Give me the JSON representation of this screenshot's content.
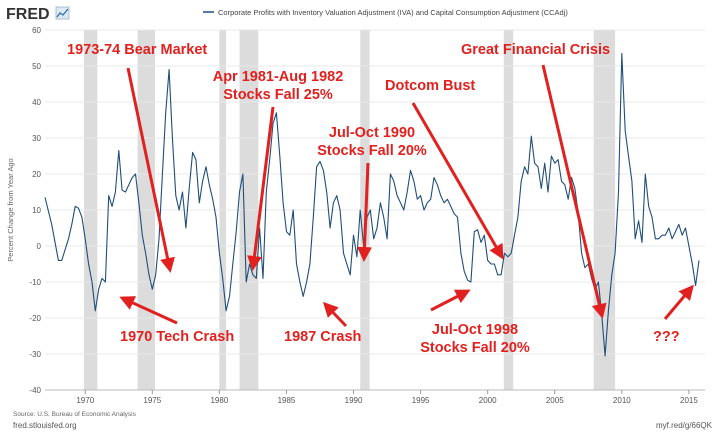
{
  "brand": {
    "name": "FRED"
  },
  "colors": {
    "series": "#1f4e79",
    "recession": "#dcdcdc",
    "annotation": "#e0211f",
    "grid": "#e8e8e8"
  },
  "footer": {
    "source": "Source: U.S. Bureau of Economic Analysis",
    "site": "fred.stlouisfed.org",
    "url": "myf.red/g/66QK"
  },
  "chart_data": {
    "type": "line",
    "title": "",
    "xlabel": "",
    "ylabel": "Percent Change from Year Ago",
    "xlim": [
      1967.0,
      2016.2
    ],
    "ylim": [
      -40,
      60
    ],
    "yticks": [
      -40,
      -30,
      -20,
      -10,
      0,
      10,
      20,
      30,
      40,
      50,
      60
    ],
    "xticks": [
      1970,
      1975,
      1980,
      1985,
      1990,
      1995,
      2000,
      2005,
      2010,
      2015
    ],
    "grid": true,
    "legend": "top",
    "recessions": [
      [
        1969.9,
        1970.9
      ],
      [
        1973.9,
        1975.2
      ],
      [
        1980.0,
        1980.5
      ],
      [
        1981.5,
        1982.9
      ],
      [
        1990.5,
        1991.2
      ],
      [
        2001.2,
        2001.9
      ],
      [
        2007.9,
        2009.5
      ]
    ],
    "series": [
      {
        "name": "Corporate Profits with Inventory Valuation Adjustment (IVA) and Capital Consumption Adjustment (CCAdj)",
        "points": [
          [
            1967.0,
            13.5
          ],
          [
            1967.5,
            6
          ],
          [
            1968.0,
            -4
          ],
          [
            1968.25,
            -4
          ],
          [
            1968.5,
            -1
          ],
          [
            1968.75,
            2
          ],
          [
            1969.0,
            6
          ],
          [
            1969.25,
            11
          ],
          [
            1969.5,
            10.5
          ],
          [
            1969.75,
            8
          ],
          [
            1970.0,
            2
          ],
          [
            1970.25,
            -5
          ],
          [
            1970.5,
            -10
          ],
          [
            1970.75,
            -18
          ],
          [
            1971.0,
            -12
          ],
          [
            1971.25,
            -9
          ],
          [
            1971.5,
            -10
          ],
          [
            1971.75,
            14
          ],
          [
            1972.0,
            11
          ],
          [
            1972.25,
            15
          ],
          [
            1972.5,
            26.5
          ],
          [
            1972.75,
            15.5
          ],
          [
            1973.0,
            15
          ],
          [
            1973.25,
            17
          ],
          [
            1973.5,
            19
          ],
          [
            1973.75,
            20
          ],
          [
            1974.0,
            12
          ],
          [
            1974.25,
            3
          ],
          [
            1974.5,
            -2
          ],
          [
            1974.75,
            -8
          ],
          [
            1975.0,
            -12
          ],
          [
            1975.25,
            -8
          ],
          [
            1975.5,
            2
          ],
          [
            1975.75,
            20
          ],
          [
            1976.0,
            37
          ],
          [
            1976.25,
            49
          ],
          [
            1976.5,
            30
          ],
          [
            1976.75,
            14
          ],
          [
            1977.0,
            10
          ],
          [
            1977.25,
            15
          ],
          [
            1977.5,
            5
          ],
          [
            1977.75,
            16
          ],
          [
            1978.0,
            26
          ],
          [
            1978.25,
            24
          ],
          [
            1978.5,
            12
          ],
          [
            1978.75,
            18
          ],
          [
            1979.0,
            22
          ],
          [
            1979.25,
            17
          ],
          [
            1979.5,
            13
          ],
          [
            1979.75,
            8
          ],
          [
            1980.0,
            -2
          ],
          [
            1980.25,
            -9
          ],
          [
            1980.5,
            -18
          ],
          [
            1980.75,
            -14
          ],
          [
            1981.0,
            -5
          ],
          [
            1981.25,
            4
          ],
          [
            1981.5,
            15
          ],
          [
            1981.75,
            20
          ],
          [
            1982.0,
            -10
          ],
          [
            1982.25,
            -5
          ],
          [
            1982.5,
            -8
          ],
          [
            1982.75,
            -9
          ],
          [
            1983.0,
            5
          ],
          [
            1983.25,
            -9
          ],
          [
            1983.5,
            15
          ],
          [
            1983.75,
            24
          ],
          [
            1984.0,
            34
          ],
          [
            1984.25,
            37
          ],
          [
            1984.5,
            25
          ],
          [
            1984.75,
            12
          ],
          [
            1985.0,
            4
          ],
          [
            1985.25,
            3
          ],
          [
            1985.5,
            10
          ],
          [
            1985.75,
            -5
          ],
          [
            1986.0,
            -10
          ],
          [
            1986.25,
            -14
          ],
          [
            1986.5,
            -10
          ],
          [
            1986.75,
            -5
          ],
          [
            1987.0,
            8
          ],
          [
            1987.25,
            22
          ],
          [
            1987.5,
            23.5
          ],
          [
            1987.75,
            21
          ],
          [
            1988.0,
            15
          ],
          [
            1988.25,
            5
          ],
          [
            1988.5,
            12
          ],
          [
            1988.75,
            14
          ],
          [
            1989.0,
            10
          ],
          [
            1989.25,
            -2
          ],
          [
            1989.5,
            -5
          ],
          [
            1989.75,
            -8
          ],
          [
            1990.0,
            3
          ],
          [
            1990.25,
            -3
          ],
          [
            1990.5,
            10
          ],
          [
            1990.75,
            0
          ],
          [
            1991.0,
            8
          ],
          [
            1991.25,
            10
          ],
          [
            1991.5,
            2
          ],
          [
            1991.75,
            5
          ],
          [
            1992.0,
            12
          ],
          [
            1992.25,
            8
          ],
          [
            1992.5,
            2
          ],
          [
            1992.75,
            20
          ],
          [
            1993.0,
            18
          ],
          [
            1993.25,
            14
          ],
          [
            1993.5,
            12
          ],
          [
            1993.75,
            10
          ],
          [
            1994.0,
            15
          ],
          [
            1994.25,
            21
          ],
          [
            1994.5,
            18
          ],
          [
            1994.75,
            13
          ],
          [
            1995.0,
            14
          ],
          [
            1995.25,
            10
          ],
          [
            1995.5,
            12
          ],
          [
            1995.75,
            13
          ],
          [
            1996.0,
            19
          ],
          [
            1996.25,
            17
          ],
          [
            1996.5,
            14
          ],
          [
            1996.75,
            12
          ],
          [
            1997.0,
            13
          ],
          [
            1997.25,
            11
          ],
          [
            1997.5,
            9
          ],
          [
            1997.75,
            8
          ],
          [
            1998.0,
            -2
          ],
          [
            1998.25,
            -7
          ],
          [
            1998.5,
            -9.5
          ],
          [
            1998.75,
            -10
          ],
          [
            1999.0,
            4
          ],
          [
            1999.25,
            4.5
          ],
          [
            1999.5,
            1
          ],
          [
            1999.75,
            3
          ],
          [
            2000.0,
            -4
          ],
          [
            2000.25,
            -5
          ],
          [
            2000.5,
            -5
          ],
          [
            2000.75,
            -8
          ],
          [
            2001.0,
            -8
          ],
          [
            2001.25,
            -2
          ],
          [
            2001.5,
            -3
          ],
          [
            2001.75,
            -2
          ],
          [
            2002.0,
            3
          ],
          [
            2002.25,
            8
          ],
          [
            2002.5,
            18
          ],
          [
            2002.75,
            22
          ],
          [
            2003.0,
            20
          ],
          [
            2003.25,
            30.5
          ],
          [
            2003.5,
            23
          ],
          [
            2003.75,
            22
          ],
          [
            2004.0,
            16
          ],
          [
            2004.25,
            23
          ],
          [
            2004.5,
            15
          ],
          [
            2004.75,
            25
          ],
          [
            2005.0,
            23
          ],
          [
            2005.25,
            24
          ],
          [
            2005.5,
            18
          ],
          [
            2005.75,
            17
          ],
          [
            2006.0,
            13
          ],
          [
            2006.25,
            19
          ],
          [
            2006.5,
            16
          ],
          [
            2006.75,
            9
          ],
          [
            2007.0,
            -2
          ],
          [
            2007.25,
            -6
          ],
          [
            2007.5,
            -5
          ],
          [
            2007.75,
            -9
          ],
          [
            2008.0,
            -12
          ],
          [
            2008.25,
            -10
          ],
          [
            2008.5,
            -19
          ],
          [
            2008.75,
            -30.5
          ],
          [
            2009.0,
            -18
          ],
          [
            2009.25,
            -8
          ],
          [
            2009.5,
            -2
          ],
          [
            2009.75,
            15
          ],
          [
            2010.0,
            53.5
          ],
          [
            2010.25,
            32
          ],
          [
            2010.5,
            25
          ],
          [
            2010.75,
            18
          ],
          [
            2011.0,
            2
          ],
          [
            2011.25,
            7
          ],
          [
            2011.5,
            1
          ],
          [
            2011.75,
            20
          ],
          [
            2012.0,
            11
          ],
          [
            2012.25,
            8
          ],
          [
            2012.5,
            2
          ],
          [
            2012.75,
            2
          ],
          [
            2013.0,
            3
          ],
          [
            2013.25,
            3
          ],
          [
            2013.5,
            5
          ],
          [
            2013.75,
            2
          ],
          [
            2014.0,
            4
          ],
          [
            2014.25,
            6
          ],
          [
            2014.5,
            3
          ],
          [
            2014.75,
            5
          ],
          [
            2015.0,
            0
          ],
          [
            2015.25,
            -5
          ],
          [
            2015.5,
            -11
          ],
          [
            2015.75,
            -4
          ]
        ]
      }
    ],
    "annotations": [
      {
        "id": "bear-1973",
        "text": [
          "1973-74 Bear Market"
        ]
      },
      {
        "id": "tech-1970",
        "text": [
          "1970 Tech Crash"
        ]
      },
      {
        "id": "stocks-1981",
        "text": [
          "Apr 1981-Aug 1982",
          "Stocks Fall 25%"
        ]
      },
      {
        "id": "crash-1987",
        "text": [
          "1987 Crash"
        ]
      },
      {
        "id": "fall-1990",
        "text": [
          "Jul-Oct 1990",
          "Stocks Fall 20%"
        ]
      },
      {
        "id": "dotcom",
        "text": [
          "Dotcom Bust"
        ]
      },
      {
        "id": "fall-1998",
        "text": [
          "Jul-Oct 1998",
          "Stocks Fall 20%"
        ]
      },
      {
        "id": "gfc",
        "text": [
          "Great Financial Crisis"
        ]
      },
      {
        "id": "unknown",
        "text": [
          "???"
        ]
      }
    ]
  }
}
